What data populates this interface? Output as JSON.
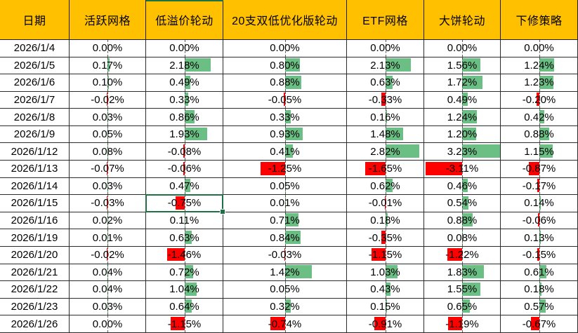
{
  "app": "spreadsheet-strategy-returns",
  "colors": {
    "header_bg": "#FFC000",
    "bar_positive_green": "#6CBF84",
    "bar_negative_red": "#FF0000",
    "selection_green": "#1E7145",
    "grid_line": "#2B2B2B",
    "text": "#000000"
  },
  "table": {
    "columns": [
      {
        "label": "日期"
      },
      {
        "label": "活跃网格"
      },
      {
        "label": "低溢价轮动"
      },
      {
        "label": "20支双低优化版轮动"
      },
      {
        "label": "ETF网格"
      },
      {
        "label": "大饼轮动"
      },
      {
        "label": "下修策略"
      }
    ],
    "rows": [
      {
        "date": "2026/1/4",
        "values": [
          "0.00%",
          "0.00%",
          "0.00%",
          "0.00%",
          "0.00%",
          "0.00%"
        ]
      },
      {
        "date": "2026/1/5",
        "values": [
          "0.17%",
          "2.18%",
          "0.80%",
          "2.13%",
          "1.56%",
          "1.24%"
        ]
      },
      {
        "date": "2026/1/6",
        "values": [
          "0.10%",
          "0.49%",
          "0.88%",
          "0.63%",
          "1.72%",
          "1.23%"
        ]
      },
      {
        "date": "2026/1/7",
        "values": [
          "-0.02%",
          "0.33%",
          "-0.05%",
          "-0.33%",
          "0.49%",
          "-0.20%"
        ]
      },
      {
        "date": "2026/1/8",
        "values": [
          "0.03%",
          "0.86%",
          "0.33%",
          "0.16%",
          "1.24%",
          "0.42%"
        ]
      },
      {
        "date": "2026/1/9",
        "values": [
          "0.05%",
          "1.93%",
          "0.93%",
          "1.48%",
          "1.20%",
          "0.88%"
        ]
      },
      {
        "date": "2026/1/12",
        "values": [
          "0.08%",
          "-0.08%",
          "0.41%",
          "2.82%",
          "3.23%",
          "1.15%"
        ]
      },
      {
        "date": "2026/1/13",
        "values": [
          "-0.07%",
          "-0.06%",
          "-1.25%",
          "-1.65%",
          "-3.11%",
          "-0.87%"
        ]
      },
      {
        "date": "2026/1/14",
        "values": [
          "0.03%",
          "0.47%",
          "0.05%",
          "0.62%",
          "0.46%",
          "-0.17%"
        ]
      },
      {
        "date": "2026/1/15",
        "values": [
          "-0.03%",
          "-0.75%",
          "0.01%",
          "-0.01%",
          "0.54%",
          "0.14%"
        ]
      },
      {
        "date": "2026/1/16",
        "values": [
          "0.02%",
          "0.11%",
          "0.71%",
          "0.18%",
          "0.88%",
          "-0.06%"
        ]
      },
      {
        "date": "2026/1/19",
        "values": [
          "0.01%",
          "0.63%",
          "0.84%",
          "-0.35%",
          "0.08%",
          "0.13%"
        ]
      },
      {
        "date": "2026/1/20",
        "values": [
          "-0.02%",
          "-1.46%",
          "-0.03%",
          "-1.15%",
          "-1.22%",
          "-0.15%"
        ]
      },
      {
        "date": "2026/1/21",
        "values": [
          "0.04%",
          "0.72%",
          "1.42%",
          "1.03%",
          "1.83%",
          "0.61%"
        ]
      },
      {
        "date": "2026/1/22",
        "values": [
          "0.04%",
          "1.04%",
          "0.05%",
          "0.43%",
          "1.55%",
          "0.18%"
        ]
      },
      {
        "date": "2026/1/23",
        "values": [
          "0.03%",
          "0.64%",
          "0.32%",
          "0.15%",
          "0.65%",
          "0.57%"
        ]
      },
      {
        "date": "2026/1/26",
        "values": [
          "0.00%",
          "-1.15%",
          "-0.74%",
          "-0.91%",
          "-1.19%",
          "-0.67%"
        ]
      }
    ]
  },
  "active_cell": {
    "row_index": 9,
    "col_index": 2,
    "date": "2026/1/15",
    "column": "低溢价轮动",
    "value": "-0.75%"
  }
}
